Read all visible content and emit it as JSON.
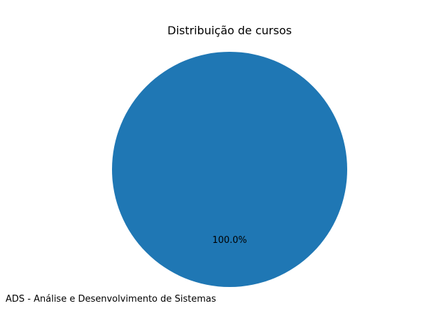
{
  "chart_data": {
    "type": "pie",
    "title": "Distribuição de cursos",
    "categories": [
      "ADS - Análise e Desenvolvimento de Sistemas"
    ],
    "values": [
      100
    ],
    "percent_labels": [
      "100.0%"
    ],
    "colors": [
      "#1f77b4"
    ],
    "legend": "none"
  }
}
